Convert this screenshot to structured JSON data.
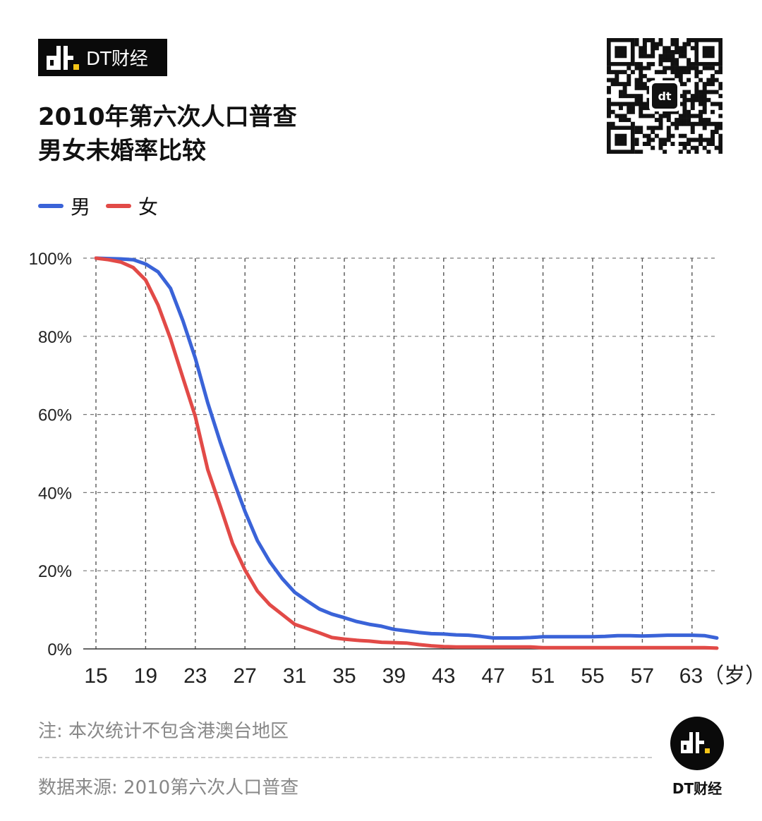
{
  "brand": {
    "name": "DT财经"
  },
  "title": {
    "line1": "2010年第六次人口普查",
    "line2": "男女未婚率比较"
  },
  "legend": [
    {
      "label": "男",
      "color": "#3a63d8"
    },
    {
      "label": "女",
      "color": "#e24a47"
    }
  ],
  "chart_data": {
    "type": "line",
    "title": "2010年第六次人口普查 男女未婚率比较",
    "xlabel": "岁",
    "ylabel": "",
    "xlim": [
      15,
      65
    ],
    "ylim": [
      0,
      100
    ],
    "yticks": [
      "0%",
      "20%",
      "40%",
      "60%",
      "80%",
      "100%"
    ],
    "xtick_labels": [
      "15",
      "19",
      "23",
      "27",
      "31",
      "35",
      "39",
      "43",
      "47",
      "51",
      "55",
      "57",
      "63（岁）"
    ],
    "grid": true,
    "legend_position": "top-left",
    "x": [
      15,
      16,
      17,
      18,
      19,
      20,
      21,
      22,
      23,
      24,
      25,
      26,
      27,
      28,
      29,
      30,
      31,
      32,
      33,
      34,
      35,
      36,
      37,
      38,
      39,
      40,
      41,
      42,
      43,
      44,
      45,
      46,
      47,
      48,
      49,
      50,
      51,
      52,
      53,
      54,
      55,
      56,
      57,
      58,
      59,
      60,
      61,
      62,
      63,
      64,
      65
    ],
    "series": [
      {
        "name": "男",
        "color": "#3a63d8",
        "values": [
          100,
          99.9,
          99.8,
          99.6,
          98.5,
          96.5,
          92.3,
          84,
          74.4,
          63,
          53,
          43.8,
          35.2,
          27.7,
          22.3,
          18,
          14.5,
          12.3,
          10.2,
          8.9,
          8,
          7,
          6.3,
          5.8,
          5,
          4.6,
          4.2,
          3.9,
          3.8,
          3.6,
          3.5,
          3.2,
          2.8,
          2.8,
          2.8,
          2.9,
          3.1,
          3.1,
          3.1,
          3.1,
          3.1,
          3.2,
          3.4,
          3.4,
          3.3,
          3.4,
          3.5,
          3.5,
          3.5,
          3.4,
          2.8
        ]
      },
      {
        "name": "女",
        "color": "#e24a47",
        "values": [
          100,
          99.6,
          99,
          97.6,
          94.4,
          88,
          79.4,
          69.4,
          59.5,
          45.9,
          36.6,
          27,
          20.2,
          14.8,
          11.3,
          8.8,
          6.3,
          5.2,
          4.1,
          2.9,
          2.5,
          2.2,
          2,
          1.7,
          1.6,
          1.5,
          1.1,
          0.8,
          0.6,
          0.5,
          0.5,
          0.5,
          0.5,
          0.5,
          0.5,
          0.5,
          0.3,
          0.3,
          0.3,
          0.3,
          0.3,
          0.3,
          0.3,
          0.3,
          0.3,
          0.3,
          0.3,
          0.3,
          0.3,
          0.3,
          0.2
        ]
      }
    ]
  },
  "footer": {
    "note": "注: 本次统计不包含港澳台地区",
    "source": "数据来源: 2010第六次人口普查",
    "brand": "DT财经"
  }
}
